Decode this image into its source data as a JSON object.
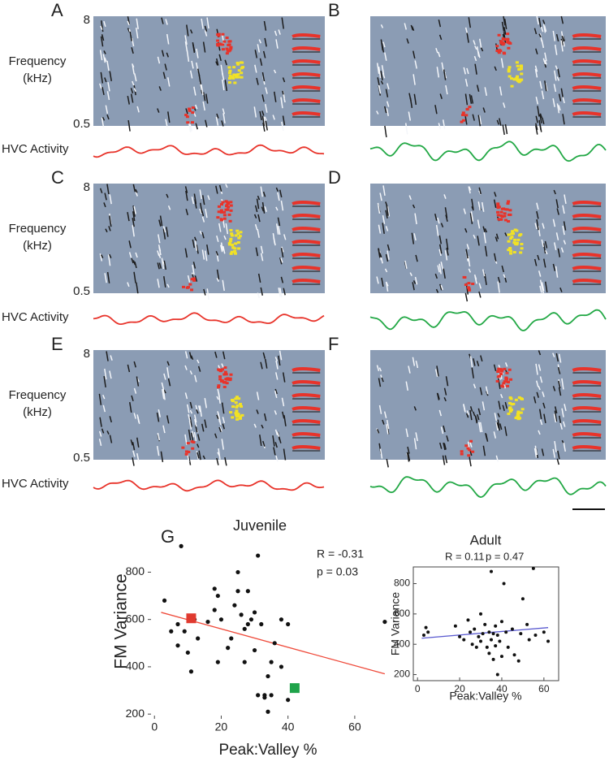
{
  "panels": [
    "A",
    "B",
    "C",
    "D",
    "E",
    "F"
  ],
  "frequency_label": [
    "Frequency",
    "(kHz)"
  ],
  "frequency_top": 8,
  "frequency_bottom": 0.5,
  "trace_label": "HVC Activity",
  "chart_data": [
    {
      "type": "scatter",
      "panel_label": "G",
      "title": "Juvenile",
      "xlabel": "Peak:Valley %",
      "ylabel": "FM Variance",
      "annotations": [
        "R = -0.31",
        "p = 0.03"
      ],
      "frame": false,
      "xlim": [
        -2,
        70
      ],
      "ylim": [
        180,
        980
      ],
      "xticks": [
        0,
        20,
        40,
        60
      ],
      "yticks": [
        200,
        400,
        600,
        800
      ],
      "series": [
        {
          "color": "#111111",
          "x": [
            3,
            5,
            7,
            7,
            8,
            9,
            10,
            11,
            12,
            13,
            16,
            18,
            18,
            19,
            19,
            20,
            22,
            23,
            24,
            25,
            25,
            26,
            27,
            27,
            28,
            28,
            29,
            30,
            30,
            31,
            31,
            32,
            33,
            33,
            34,
            34,
            35,
            35,
            36,
            38,
            38,
            40,
            40,
            69
          ],
          "values": [
            680,
            550,
            580,
            490,
            910,
            550,
            460,
            380,
            600,
            520,
            590,
            640,
            730,
            700,
            420,
            600,
            480,
            520,
            660,
            720,
            800,
            620,
            560,
            420,
            720,
            580,
            600,
            630,
            470,
            870,
            280,
            580,
            280,
            270,
            210,
            360,
            280,
            420,
            500,
            600,
            400,
            580,
            260,
            590
          ]
        }
      ],
      "highlights": [
        {
          "x": 11,
          "y": 605,
          "color": "#e03a2f"
        },
        {
          "x": 42,
          "y": 310,
          "color": "#1fa34a"
        }
      ],
      "trend": {
        "x": [
          2,
          69
        ],
        "y": [
          630,
          370
        ],
        "color": "#ef4a3a"
      }
    },
    {
      "type": "scatter",
      "title": "Adult",
      "xlabel": "Peak:Valley %",
      "ylabel": "FM Variance",
      "annotations": [
        "R = 0.11",
        "p = 0.47"
      ],
      "frame": true,
      "xlim": [
        -2,
        67
      ],
      "ylim": [
        160,
        910
      ],
      "xticks": [
        0,
        20,
        40,
        60
      ],
      "yticks": [
        200,
        400,
        600,
        800
      ],
      "series": [
        {
          "color": "#111111",
          "x": [
            3,
            4,
            5,
            18,
            20,
            22,
            24,
            25,
            26,
            27,
            28,
            29,
            30,
            30,
            31,
            32,
            33,
            34,
            34,
            35,
            35,
            36,
            36,
            37,
            37,
            38,
            38,
            39,
            40,
            40,
            41,
            42,
            43,
            45,
            46,
            48,
            49,
            50,
            52,
            53,
            55,
            56,
            60,
            62
          ],
          "values": [
            460,
            510,
            480,
            520,
            450,
            430,
            560,
            480,
            400,
            500,
            380,
            450,
            600,
            420,
            470,
            530,
            380,
            480,
            340,
            880,
            430,
            470,
            300,
            520,
            390,
            460,
            200,
            420,
            550,
            320,
            800,
            480,
            380,
            500,
            330,
            290,
            470,
            700,
            530,
            430,
            900,
            460,
            480,
            420
          ]
        }
      ],
      "trend": {
        "x": [
          2,
          62
        ],
        "y": [
          440,
          510
        ],
        "color": "#5a5ad0"
      }
    }
  ]
}
